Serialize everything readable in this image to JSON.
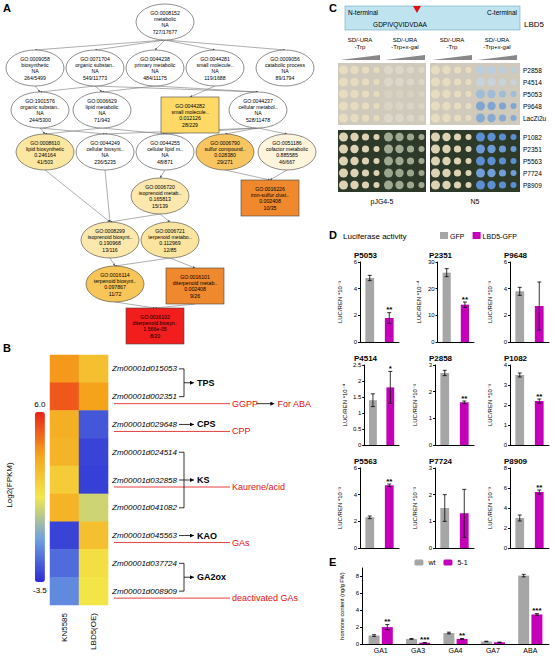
{
  "panels": [
    "A",
    "B",
    "C",
    "D",
    "E"
  ],
  "go_graph": {
    "nodes": [
      {
        "id": "GO:0008152",
        "name": "metabolic",
        "p": "NA",
        "count": "727/17677",
        "shape": "ellipse",
        "color": "#ffffff"
      },
      {
        "id": "GO:0009058",
        "name": "biosynthetic",
        "p": "NA",
        "count": "264/5499",
        "shape": "ellipse",
        "color": "#ffffff"
      },
      {
        "id": "GO:0071704",
        "name": "organic substan..",
        "p": "NA",
        "count": "549/11773",
        "shape": "ellipse",
        "color": "#ffffff"
      },
      {
        "id": "GO:0044238",
        "name": "primary metabolic",
        "p": "NA",
        "count": "484/11175",
        "shape": "ellipse",
        "color": "#ffffff"
      },
      {
        "id": "GO:0044281",
        "name": "small molecule..",
        "p": "NA",
        "count": "119/1688",
        "shape": "ellipse",
        "color": "#ffffff"
      },
      {
        "id": "GO:0009056",
        "name": "catabolic process",
        "p": "NA",
        "count": "89/1794",
        "shape": "ellipse",
        "color": "#ffffff"
      },
      {
        "id": "GO:1901576",
        "name": "organic substan..",
        "p": "NA",
        "count": "244/5300",
        "shape": "ellipse",
        "color": "#ffffff"
      },
      {
        "id": "GO:0006629",
        "name": "lipid metabolic",
        "p": "NA",
        "count": "71/943",
        "shape": "ellipse",
        "color": "#ffffff"
      },
      {
        "id": "GO:0044282",
        "name": "small molecule..",
        "p": "0.012126",
        "count": "28/229",
        "shape": "box",
        "color": "#ffd966"
      },
      {
        "id": "GO:0044237",
        "name": "cellular metabol..",
        "p": "NA",
        "count": "528/11478",
        "shape": "ellipse",
        "color": "#ffffff"
      },
      {
        "id": "GO:0008610",
        "name": "lipid biosynthetic",
        "p": "0.246164",
        "count": "41/503",
        "shape": "ellipse",
        "color": "#fbe6a2"
      },
      {
        "id": "GO:0044249",
        "name": "cellular biosynt..",
        "p": "NA",
        "count": "236/5235",
        "shape": "ellipse",
        "color": "#ffffff"
      },
      {
        "id": "GO:0044255",
        "name": "cellular lipid m..",
        "p": "NA",
        "count": "48/871",
        "shape": "ellipse",
        "color": "#ffffff"
      },
      {
        "id": "GO:0006790",
        "name": "sulfur compound..",
        "p": "0.028380",
        "count": "29/271",
        "shape": "ellipse",
        "color": "#f9c561"
      },
      {
        "id": "GO:0051186",
        "name": "cofactor metabolic",
        "p": "0.885585",
        "count": "46/667",
        "shape": "ellipse",
        "color": "#fff4dc"
      },
      {
        "id": "GO:0006720",
        "name": "isoprenoid metab..",
        "p": "0.165813",
        "count": "15/139",
        "shape": "ellipse",
        "color": "#fce7ad"
      },
      {
        "id": "GO:0016226",
        "name": "iron-sulfur clust..",
        "p": "0.002408",
        "count": "10/35",
        "shape": "box",
        "color": "#f0892e"
      },
      {
        "id": "GO:0008299",
        "name": "isoprenoid biosynt..",
        "p": "0.190968",
        "count": "13/116",
        "shape": "ellipse",
        "color": "#fce7ad"
      },
      {
        "id": "GO:0006721",
        "name": "terpenoid metabo..",
        "p": "0.112969",
        "count": "12/85",
        "shape": "ellipse",
        "color": "#fbe3a0"
      },
      {
        "id": "GO:0016114",
        "name": "terpenoid biosynt..",
        "p": "0.097867",
        "count": "11/72",
        "shape": "ellipse",
        "color": "#f7c558"
      },
      {
        "id": "GO:0016101",
        "name": "diterpenoid metab..",
        "p": "0.002408",
        "count": "9/26",
        "shape": "box",
        "color": "#f0892e"
      },
      {
        "id": "GO:0016102",
        "name": "diterpenoid biosyn..",
        "p": "1.566e-05",
        "count": "8/20",
        "shape": "box",
        "color": "#f21e1e"
      }
    ],
    "edges": [
      [
        0,
        1
      ],
      [
        0,
        2
      ],
      [
        0,
        3
      ],
      [
        0,
        4
      ],
      [
        0,
        5
      ],
      [
        1,
        6
      ],
      [
        2,
        6
      ],
      [
        2,
        7
      ],
      [
        3,
        7
      ],
      [
        2,
        9
      ],
      [
        3,
        9
      ],
      [
        4,
        8
      ],
      [
        6,
        10
      ],
      [
        7,
        10
      ],
      [
        6,
        11
      ],
      [
        9,
        11
      ],
      [
        7,
        12
      ],
      [
        9,
        12
      ],
      [
        9,
        13
      ],
      [
        9,
        14
      ],
      [
        10,
        17
      ],
      [
        11,
        17
      ],
      [
        12,
        15
      ],
      [
        15,
        17
      ],
      [
        15,
        18
      ],
      [
        13,
        16
      ],
      [
        14,
        16
      ],
      [
        17,
        19
      ],
      [
        18,
        19
      ],
      [
        18,
        20
      ],
      [
        19,
        21
      ],
      [
        20,
        21
      ]
    ]
  },
  "pathway": {
    "steps": [
      {
        "enzyme": "TPS",
        "rows": [
          0,
          1
        ]
      },
      {
        "enzyme": "CPS",
        "rows": [
          2
        ]
      },
      {
        "enzyme": "KS",
        "rows": [
          3,
          4,
          5
        ]
      },
      {
        "enzyme": "KAO",
        "rows": [
          6
        ]
      },
      {
        "enzyme": "GA2ox",
        "rows": [
          7,
          8
        ]
      }
    ],
    "products": [
      {
        "label": "GGPP",
        "row": 1,
        "note": "For ABA"
      },
      {
        "label": "CPP",
        "row": 2
      },
      {
        "label": "Kaurene/acid",
        "row": 4
      },
      {
        "label": "GAs",
        "row": 6
      },
      {
        "label": "deactivated GAs",
        "row": 8
      }
    ]
  },
  "y2h": {
    "protein": "LBD5",
    "n_term": "N-terminal",
    "c_term": "C-terminal",
    "motif": "GDPIVQVIDVDAA",
    "columns": [
      [
        "SD/-URA",
        "-Trp"
      ],
      [
        "SD/-URA",
        "-Trp+x-gal"
      ],
      [
        "SD/-URA",
        "-Trp"
      ],
      [
        "SD/-URA",
        "-Trp+x-gal"
      ]
    ],
    "baits": [
      "pJG4-5",
      "N5"
    ],
    "plates": [
      [
        "P2858",
        "P4514",
        "P5053",
        "P9648",
        "LacZi2u"
      ],
      [
        "P1082",
        "P2351",
        "P5563",
        "P7724",
        "P8909"
      ]
    ]
  },
  "luciferase": {
    "title": "Luciferase activity",
    "legend": [
      {
        "name": "GFP",
        "color": "#a6a6a6"
      },
      {
        "name": "LBD5-GFP",
        "color": "#c400b8"
      }
    ]
  },
  "chart_data": [
    {
      "type": "heatmap",
      "x": [
        "KN5585",
        "LBD5(OE)"
      ],
      "y": [
        "Zm00001d015053",
        "Zm00001d002351",
        "Zm00001d029648",
        "Zm00001d024514",
        "Zm00001d032858",
        "Zm00001d041082",
        "Zm00001d045563",
        "Zm00001d037724",
        "Zm00001d008909"
      ],
      "cells": [
        [
          3.8,
          2.6
        ],
        [
          5.0,
          3.6
        ],
        [
          3.2,
          -2.6
        ],
        [
          3.0,
          -3.0
        ],
        [
          2.2,
          -3.1
        ],
        [
          3.0,
          0.6
        ],
        [
          -3.0,
          2.6
        ],
        [
          -2.2,
          1.6
        ],
        [
          -1.6,
          1.4
        ]
      ],
      "colorbar": {
        "label": "Log2(FPKM)",
        "range": [
          -3.5,
          6.0
        ],
        "ticks": [
          {
            "value": 6,
            "label": "6.0"
          },
          {
            "value": -3.5,
            "label": "-3.5"
          }
        ]
      }
    },
    {
      "type": "bar",
      "title": "P5053",
      "categories": [
        null,
        null
      ],
      "values": [
        4.8,
        1.8
      ],
      "errors": [
        0.2,
        0.4
      ],
      "annotations": [
        null,
        "**"
      ],
      "colors": [
        "#a6a6a6",
        "#c400b8"
      ],
      "y_label": "LUC/REN *10⁻³",
      "ylim": [
        0,
        6
      ],
      "yticks": [
        0,
        2,
        4,
        6
      ],
      "tick_labels": "y"
    },
    {
      "type": "bar",
      "title": "P2351",
      "categories": [
        null,
        null
      ],
      "values": [
        26,
        14
      ],
      "errors": [
        1.5,
        1.0
      ],
      "annotations": [
        null,
        "**"
      ],
      "colors": [
        "#a6a6a6",
        "#c400b8"
      ],
      "y_label": "LUC/REN *10⁻⁴",
      "ylim": [
        0,
        30
      ],
      "yticks": [
        0,
        10,
        20,
        30
      ],
      "tick_labels": "y"
    },
    {
      "type": "bar",
      "title": "P9648",
      "categories": [
        null,
        null
      ],
      "values": [
        3.8,
        2.7
      ],
      "errors": [
        0.3,
        1.8
      ],
      "annotations": [
        null,
        null
      ],
      "colors": [
        "#a6a6a6",
        "#c400b8"
      ],
      "y_label": "LUC/REN *10⁻³",
      "ylim": [
        0,
        6
      ],
      "yticks": [
        0,
        2,
        4,
        6
      ],
      "tick_labels": "y"
    },
    {
      "type": "bar",
      "title": "P4514",
      "categories": [
        null,
        null
      ],
      "values": [
        1.4,
        1.8
      ],
      "errors": [
        0.2,
        0.5
      ],
      "annotations": [
        null,
        "*"
      ],
      "colors": [
        "#a6a6a6",
        "#c400b8"
      ],
      "y_label": "LUC/REN *10⁻⁴",
      "ylim": [
        0,
        2.5
      ],
      "yticks": [
        0,
        0.5,
        1,
        1.5,
        2,
        2.5
      ],
      "tick_labels": "y"
    },
    {
      "type": "bar",
      "title": "P2858",
      "categories": [
        null,
        null
      ],
      "values": [
        2.7,
        1.6
      ],
      "errors": [
        0.1,
        0.05
      ],
      "annotations": [
        null,
        "**"
      ],
      "colors": [
        "#a6a6a6",
        "#c400b8"
      ],
      "y_label": "LUC/REN *10⁻³",
      "ylim": [
        0,
        3
      ],
      "yticks": [
        0,
        1,
        2,
        3
      ],
      "tick_labels": "y"
    },
    {
      "type": "bar",
      "title": "P1082",
      "categories": [
        null,
        null
      ],
      "values": [
        3.5,
        2.2
      ],
      "errors": [
        0.1,
        0.1
      ],
      "annotations": [
        null,
        "**"
      ],
      "colors": [
        "#a6a6a6",
        "#c400b8"
      ],
      "y_label": "LUC/REN *10⁻³",
      "ylim": [
        0,
        4
      ],
      "yticks": [
        0,
        1,
        2,
        3,
        4
      ],
      "tick_labels": "y"
    },
    {
      "type": "bar",
      "title": "P5563",
      "categories": [
        null,
        null
      ],
      "values": [
        2.3,
        4.7
      ],
      "errors": [
        0.1,
        0.1
      ],
      "annotations": [
        null,
        "**"
      ],
      "colors": [
        "#a6a6a6",
        "#c400b8"
      ],
      "y_label": "LUC/REN *10⁻³",
      "ylim": [
        0,
        6
      ],
      "yticks": [
        0,
        2,
        4,
        6
      ],
      "tick_labels": "y"
    },
    {
      "type": "bar",
      "title": "P7724",
      "categories": [
        null,
        null
      ],
      "values": [
        1.5,
        1.3
      ],
      "errors": [
        0.5,
        0.9
      ],
      "annotations": [
        null,
        null
      ],
      "colors": [
        "#a6a6a6",
        "#c400b8"
      ],
      "y_label": "LUC/REN *10⁻³",
      "ylim": [
        0,
        3
      ],
      "yticks": [
        0,
        1,
        2,
        3
      ],
      "tick_labels": "y"
    },
    {
      "type": "bar",
      "title": "P8909",
      "categories": [
        null,
        null
      ],
      "values": [
        3.0,
        5.6
      ],
      "errors": [
        0.3,
        0.2
      ],
      "annotations": [
        null,
        "**"
      ],
      "colors": [
        "#a6a6a6",
        "#c400b8"
      ],
      "y_label": "LUC/REN *10⁻³",
      "ylim": [
        0,
        8
      ],
      "yticks": [
        0,
        2,
        4,
        6,
        8
      ],
      "tick_labels": "y"
    },
    {
      "type": "bar",
      "categories": [
        "GA1",
        "GA3",
        "GA4",
        "GA7",
        "ABA"
      ],
      "series": [
        {
          "name": "wt",
          "color": "#a6a6a6",
          "values": [
            1.0,
            0.6,
            1.3,
            0.3,
            8.1
          ],
          "errors": [
            0.1,
            0.05,
            0.1,
            0.03,
            0.15
          ]
        },
        {
          "name": "5-1",
          "color": "#c400b8",
          "values": [
            2.0,
            0.15,
            0.6,
            0.2,
            3.5
          ],
          "errors": [
            0.3,
            0.03,
            0.05,
            0.03,
            0.1
          ],
          "annotations": [
            "**",
            "***",
            "**",
            null,
            "***"
          ]
        }
      ],
      "y_label": "hormone content (ng/g FW)",
      "ylim": [
        0,
        9
      ],
      "yticks": [
        0,
        2,
        4,
        6,
        8
      ],
      "legend": "top"
    }
  ]
}
